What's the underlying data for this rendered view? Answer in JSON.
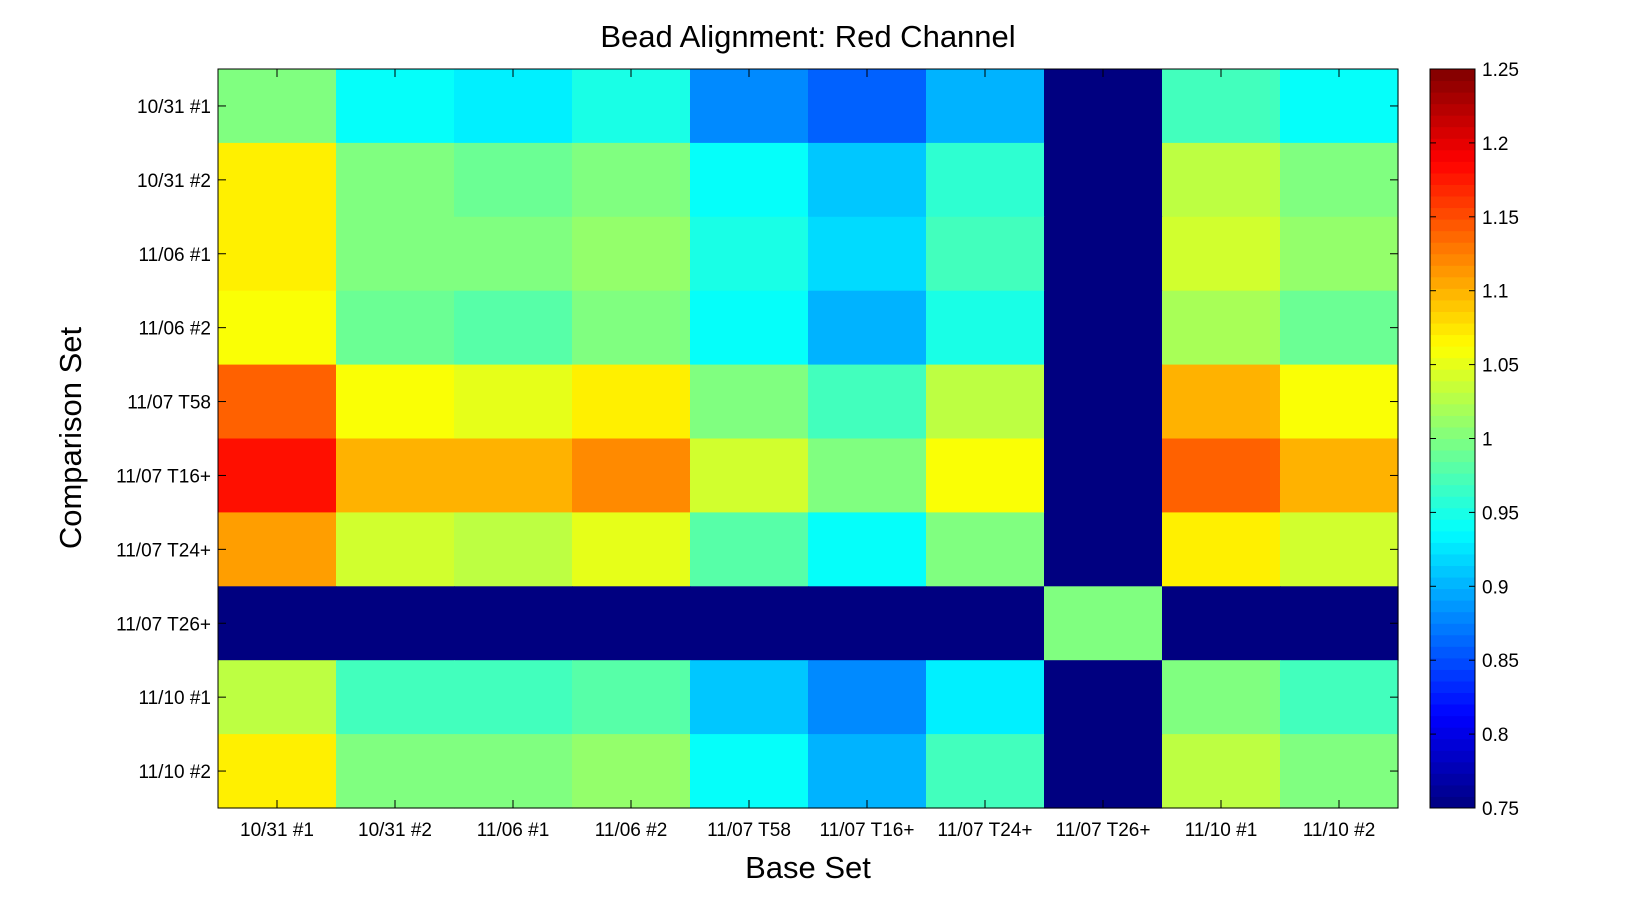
{
  "chart_data": {
    "type": "heatmap",
    "title": "Bead Alignment: Red Channel",
    "xlabel": "Base Set",
    "ylabel": "Comparison Set",
    "x_categories": [
      "10/31 #1",
      "10/31 #2",
      "11/06 #1",
      "11/06 #2",
      "11/07 T58",
      "11/07 T16+",
      "11/07 T24+",
      "11/07 T26+",
      "11/10 #1",
      "11/10 #2"
    ],
    "y_categories": [
      "10/31 #1",
      "10/31 #2",
      "11/06 #1",
      "11/06 #2",
      "11/07 T58",
      "11/07 T16+",
      "11/07 T24+",
      "11/07 T26+",
      "11/10 #1",
      "11/10 #2"
    ],
    "values": [
      [
        1.0,
        0.94,
        0.93,
        0.95,
        0.88,
        0.86,
        0.9,
        0.75,
        0.97,
        0.94
      ],
      [
        1.07,
        1.0,
        0.99,
        1.0,
        0.94,
        0.91,
        0.96,
        0.75,
        1.03,
        1.0
      ],
      [
        1.07,
        1.0,
        1.0,
        1.01,
        0.95,
        0.92,
        0.97,
        0.75,
        1.04,
        1.01
      ],
      [
        1.06,
        0.99,
        0.98,
        1.0,
        0.94,
        0.9,
        0.95,
        0.75,
        1.02,
        0.99
      ],
      [
        1.14,
        1.06,
        1.05,
        1.07,
        1.0,
        0.97,
        1.03,
        0.75,
        1.1,
        1.06
      ],
      [
        1.18,
        1.1,
        1.1,
        1.12,
        1.04,
        1.0,
        1.06,
        0.75,
        1.14,
        1.1
      ],
      [
        1.11,
        1.04,
        1.03,
        1.05,
        0.98,
        0.94,
        1.0,
        0.75,
        1.07,
        1.04
      ],
      [
        0.75,
        0.75,
        0.75,
        0.75,
        0.75,
        0.75,
        0.75,
        1.0,
        0.75,
        0.75
      ],
      [
        1.03,
        0.97,
        0.97,
        0.98,
        0.91,
        0.88,
        0.93,
        0.75,
        1.0,
        0.97
      ],
      [
        1.07,
        1.0,
        1.0,
        1.01,
        0.94,
        0.9,
        0.97,
        0.75,
        1.03,
        1.0
      ]
    ],
    "colorbar": {
      "colormap": "jet",
      "range": [
        0.75,
        1.25
      ],
      "ticks": [
        0.75,
        0.8,
        0.85,
        0.9,
        0.95,
        1,
        1.05,
        1.1,
        1.15,
        1.2,
        1.25
      ],
      "tick_labels": [
        "0.75",
        "0.8",
        "0.85",
        "0.9",
        "0.95",
        "1",
        "1.05",
        "1.1",
        "1.15",
        "1.2",
        "1.25"
      ],
      "levels": 64
    }
  }
}
